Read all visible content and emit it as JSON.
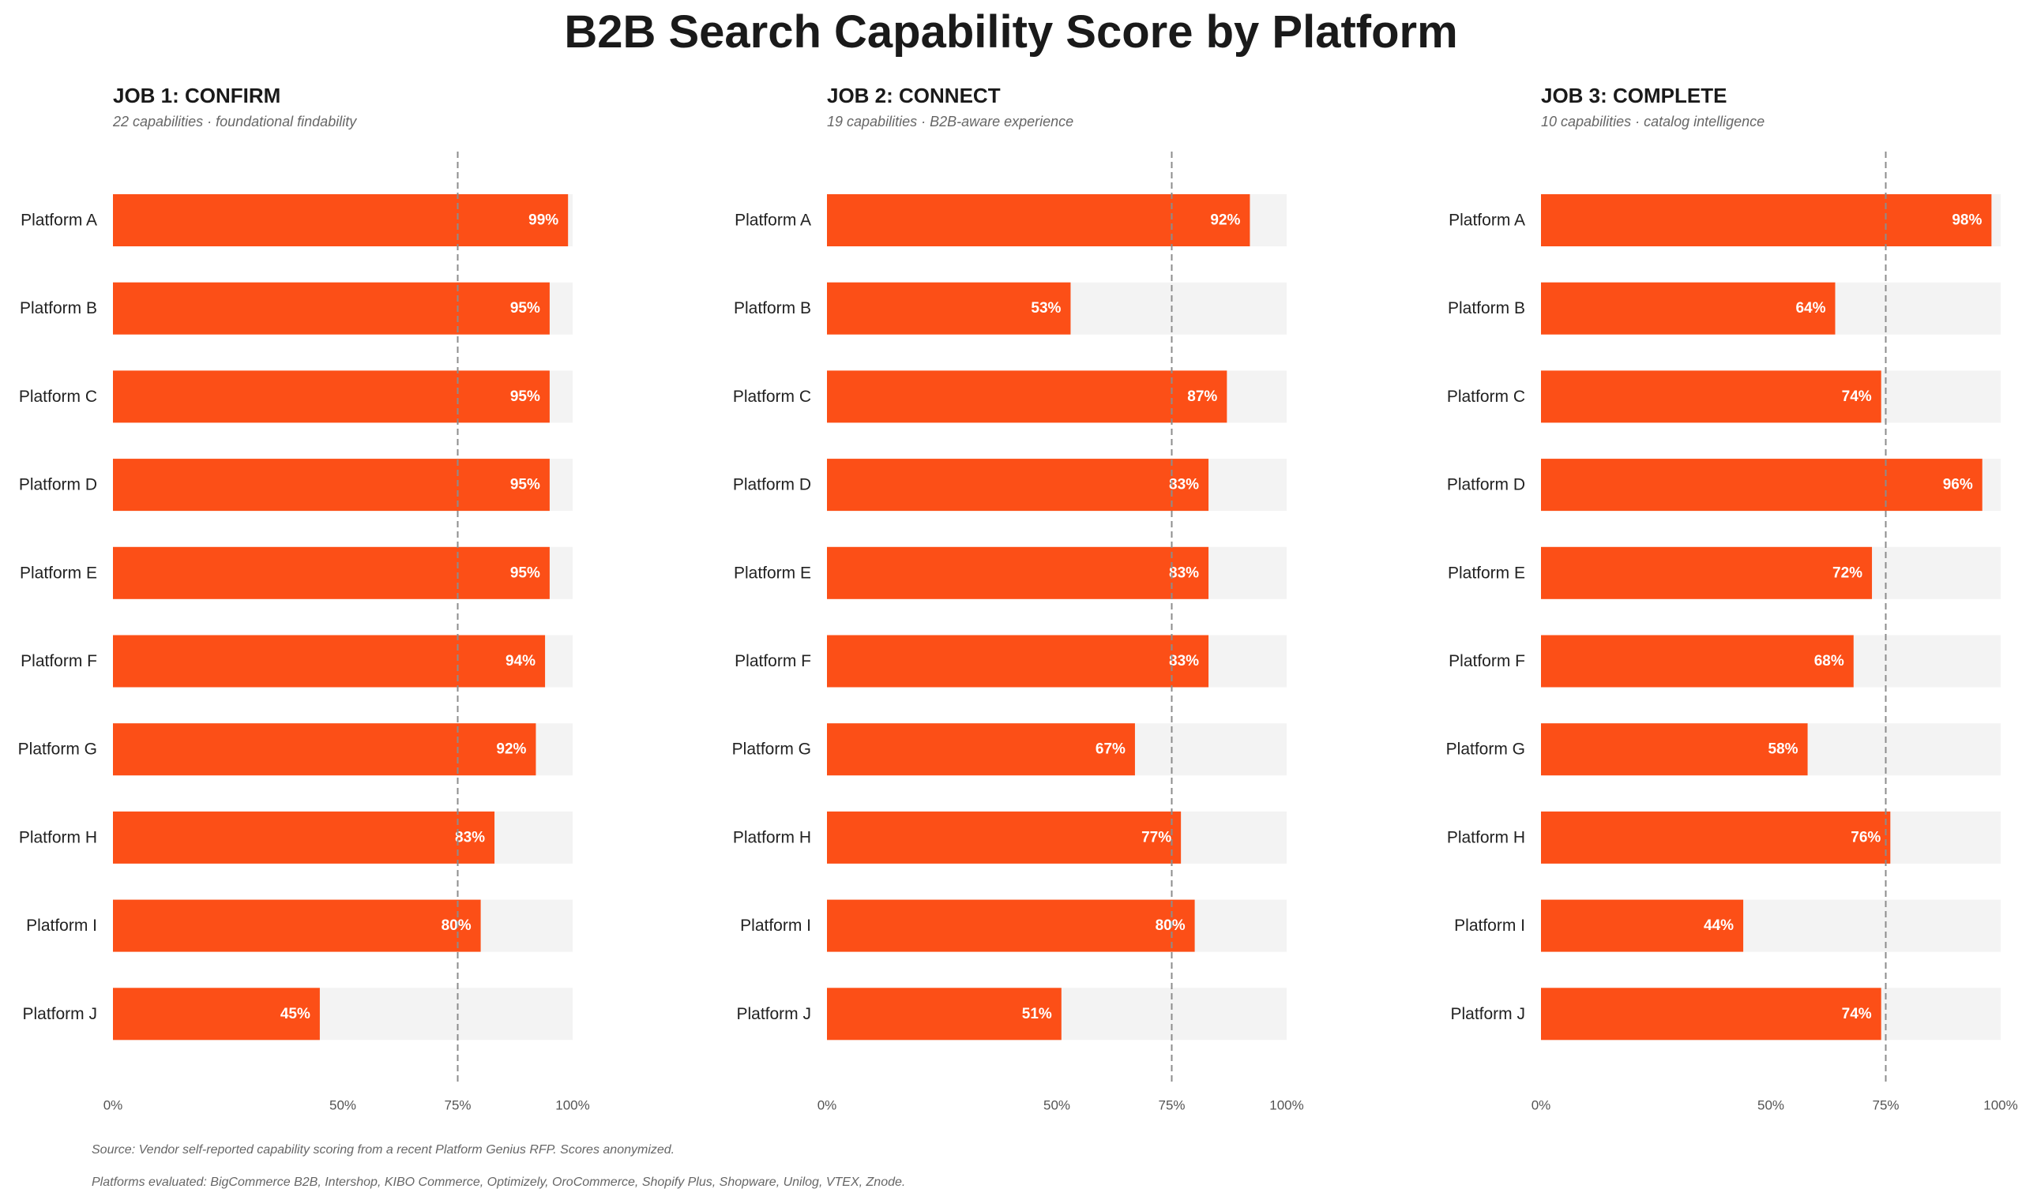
{
  "title": "B2B Search Capability Score by Platform",
  "colors": {
    "bar": "#FC4F17",
    "track": "#F3F3F3",
    "reference_line": "#8C8C8C"
  },
  "chart_data": [
    {
      "type": "bar",
      "orientation": "horizontal",
      "title": "JOB 1: CONFIRM",
      "subtitle": "22 capabilities · foundational findability",
      "categories": [
        "Platform A",
        "Platform B",
        "Platform C",
        "Platform D",
        "Platform E",
        "Platform F",
        "Platform G",
        "Platform H",
        "Platform I",
        "Platform J"
      ],
      "values": [
        99,
        95,
        95,
        95,
        95,
        94,
        92,
        83,
        80,
        45
      ],
      "value_labels": [
        "99%",
        "95%",
        "95%",
        "95%",
        "95%",
        "94%",
        "92%",
        "83%",
        "80%",
        "45%"
      ],
      "xlim": [
        0,
        100
      ],
      "ticks": [
        0,
        50,
        75,
        100
      ],
      "tick_labels": [
        "0%",
        "50%",
        "75%",
        "100%"
      ],
      "reference_line": 75,
      "grid": false
    },
    {
      "type": "bar",
      "orientation": "horizontal",
      "title": "JOB 2: CONNECT",
      "subtitle": "19 capabilities · B2B-aware experience",
      "categories": [
        "Platform A",
        "Platform B",
        "Platform C",
        "Platform D",
        "Platform E",
        "Platform F",
        "Platform G",
        "Platform H",
        "Platform I",
        "Platform J"
      ],
      "values": [
        92,
        53,
        87,
        83,
        83,
        83,
        67,
        77,
        80,
        51
      ],
      "value_labels": [
        "92%",
        "53%",
        "87%",
        "83%",
        "83%",
        "83%",
        "67%",
        "77%",
        "80%",
        "51%"
      ],
      "xlim": [
        0,
        100
      ],
      "ticks": [
        0,
        50,
        75,
        100
      ],
      "tick_labels": [
        "0%",
        "50%",
        "75%",
        "100%"
      ],
      "reference_line": 75,
      "grid": false
    },
    {
      "type": "bar",
      "orientation": "horizontal",
      "title": "JOB 3: COMPLETE",
      "subtitle": "10 capabilities · catalog intelligence",
      "categories": [
        "Platform A",
        "Platform B",
        "Platform C",
        "Platform D",
        "Platform E",
        "Platform F",
        "Platform G",
        "Platform H",
        "Platform I",
        "Platform J"
      ],
      "values": [
        98,
        64,
        74,
        96,
        72,
        68,
        58,
        76,
        44,
        74
      ],
      "value_labels": [
        "98%",
        "64%",
        "74%",
        "96%",
        "72%",
        "68%",
        "58%",
        "76%",
        "44%",
        "74%"
      ],
      "xlim": [
        0,
        100
      ],
      "ticks": [
        0,
        50,
        75,
        100
      ],
      "tick_labels": [
        "0%",
        "50%",
        "75%",
        "100%"
      ],
      "reference_line": 75,
      "grid": false
    }
  ],
  "footnotes": {
    "source": "Source: Vendor self-reported capability scoring from a recent Platform Genius RFP. Scores anonymized.",
    "platforms": "Platforms evaluated: BigCommerce B2B, Intershop, KIBO Commerce, Optimizely, OroCommerce, Shopify Plus, Shopware, Unilog, VTEX, Znode."
  }
}
